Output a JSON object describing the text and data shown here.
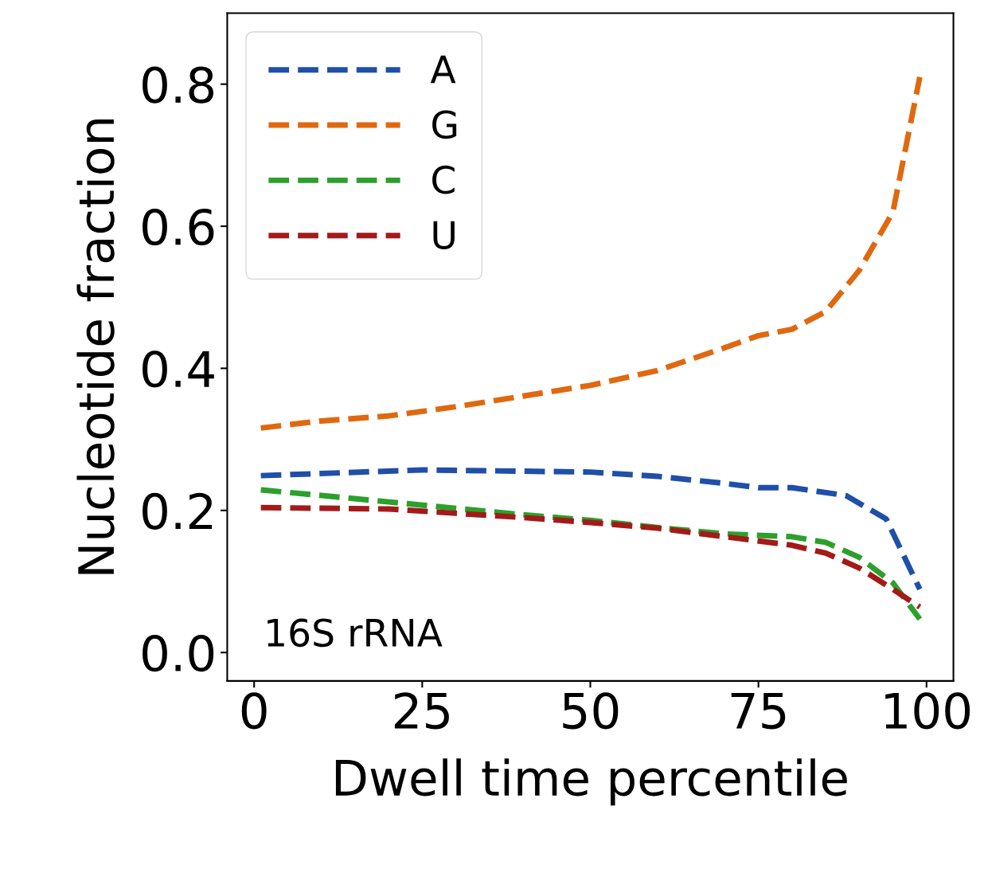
{
  "chart_data": {
    "type": "line",
    "xlabel": "Dwell time percentile",
    "ylabel": "Nucleotide fraction",
    "xlim": [
      -4,
      104
    ],
    "ylim": [
      -0.04,
      0.9
    ],
    "xticks": [
      0,
      25,
      50,
      75,
      100
    ],
    "yticks": [
      {
        "value": 0,
        "label": "0.0"
      },
      0.2,
      0.4,
      0.6,
      0.8
    ],
    "grid": false,
    "legend": "top left",
    "line_style": "dashed",
    "marker": "none",
    "annotations": [
      "16S rRNA"
    ],
    "series": [
      {
        "name": "A",
        "color": "#1f4fa8",
        "x": [
          1,
          25,
          50,
          60,
          70,
          75,
          80,
          88,
          94,
          99
        ],
        "values": [
          0.249,
          0.257,
          0.254,
          0.248,
          0.238,
          0.232,
          0.232,
          0.221,
          0.188,
          0.089
        ]
      },
      {
        "name": "G",
        "color": "#e0680f",
        "x": [
          1,
          10,
          20,
          30,
          40,
          50,
          60,
          70,
          75,
          80,
          85,
          90,
          95,
          99
        ],
        "values": [
          0.316,
          0.326,
          0.333,
          0.346,
          0.361,
          0.376,
          0.397,
          0.429,
          0.446,
          0.455,
          0.48,
          0.538,
          0.62,
          0.81
        ]
      },
      {
        "name": "C",
        "color": "#2ca02c",
        "x": [
          1,
          10,
          20,
          30,
          40,
          50,
          60,
          70,
          80,
          85,
          90,
          95,
          99
        ],
        "values": [
          0.229,
          0.221,
          0.212,
          0.203,
          0.194,
          0.186,
          0.176,
          0.167,
          0.163,
          0.155,
          0.134,
          0.098,
          0.047
        ]
      },
      {
        "name": "U",
        "color": "#a31a1a",
        "x": [
          1,
          20,
          30,
          40,
          50,
          60,
          70,
          80,
          85,
          90,
          95,
          99
        ],
        "values": [
          0.204,
          0.202,
          0.196,
          0.19,
          0.183,
          0.175,
          0.163,
          0.151,
          0.14,
          0.119,
          0.089,
          0.064
        ]
      }
    ]
  }
}
